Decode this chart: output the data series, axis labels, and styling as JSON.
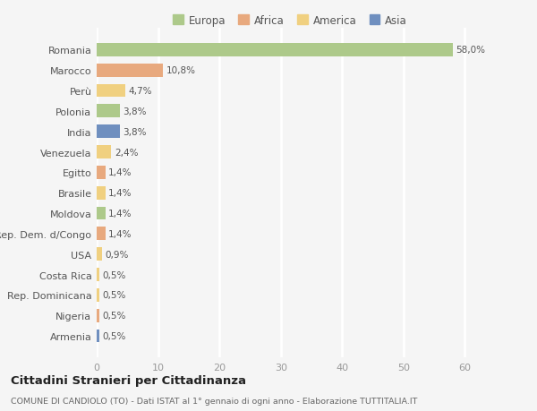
{
  "countries": [
    "Romania",
    "Marocco",
    "Perù",
    "Polonia",
    "India",
    "Venezuela",
    "Egitto",
    "Brasile",
    "Moldova",
    "Rep. Dem. d/Congo",
    "USA",
    "Costa Rica",
    "Rep. Dominicana",
    "Nigeria",
    "Armenia"
  ],
  "values": [
    58.0,
    10.8,
    4.7,
    3.8,
    3.8,
    2.4,
    1.4,
    1.4,
    1.4,
    1.4,
    0.9,
    0.5,
    0.5,
    0.5,
    0.5
  ],
  "labels": [
    "58,0%",
    "10,8%",
    "4,7%",
    "3,8%",
    "3,8%",
    "2,4%",
    "1,4%",
    "1,4%",
    "1,4%",
    "1,4%",
    "0,9%",
    "0,5%",
    "0,5%",
    "0,5%",
    "0,5%"
  ],
  "colors": [
    "#adc98a",
    "#e8a97e",
    "#f0d080",
    "#adc98a",
    "#6f8fbf",
    "#f0d080",
    "#e8a97e",
    "#f0d080",
    "#adc98a",
    "#e8a97e",
    "#f0d080",
    "#f0d080",
    "#f0d080",
    "#e8a97e",
    "#6f8fbf"
  ],
  "legend": {
    "Europa": "#adc98a",
    "Africa": "#e8a97e",
    "America": "#f0d080",
    "Asia": "#6f8fbf"
  },
  "title": "Cittadini Stranieri per Cittadinanza",
  "subtitle": "COMUNE DI CANDIOLO (TO) - Dati ISTAT al 1° gennaio di ogni anno - Elaborazione TUTTITALIA.IT",
  "xlim": [
    0,
    63
  ],
  "xticks": [
    0,
    10,
    20,
    30,
    40,
    50,
    60
  ],
  "background_color": "#f5f5f5",
  "grid_color": "#ffffff",
  "bar_height": 0.65
}
